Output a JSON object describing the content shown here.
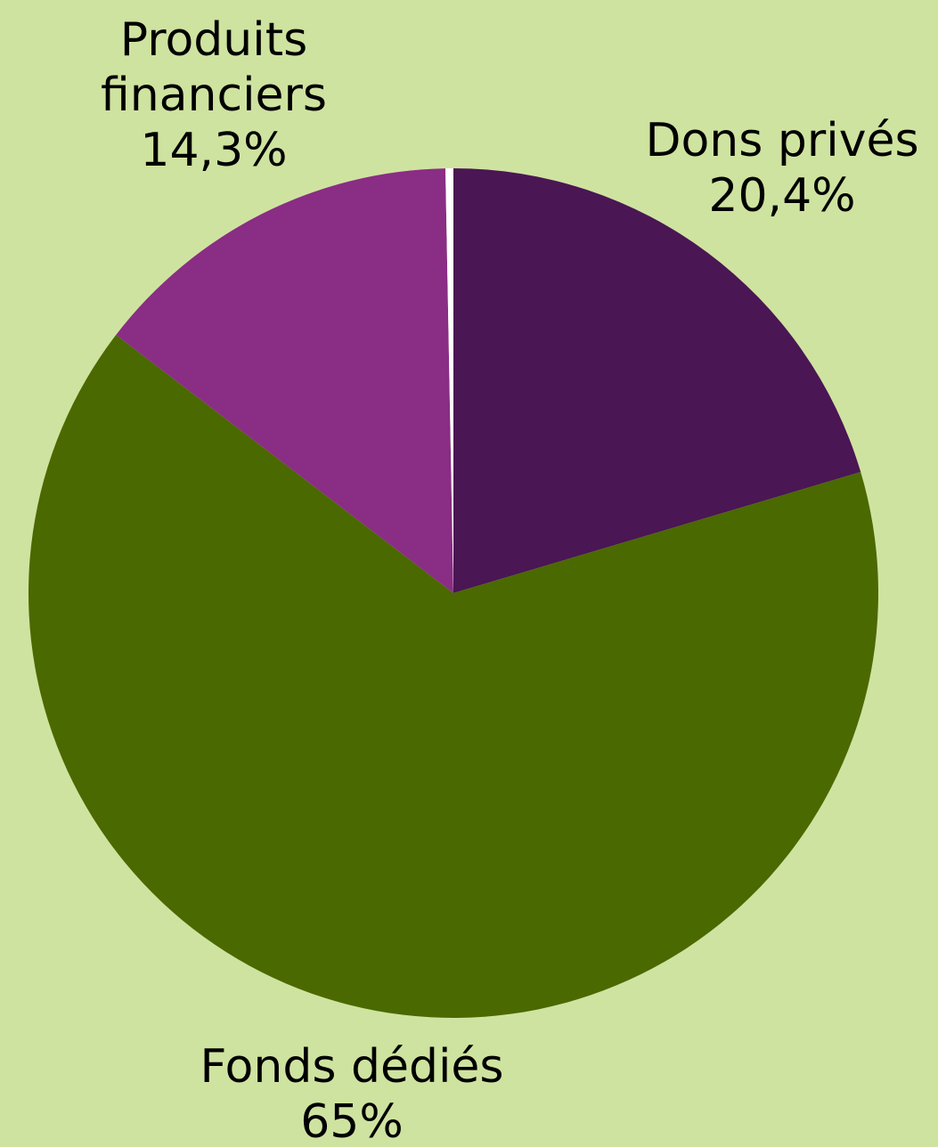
{
  "colors": {
    "background": "#cfe3a0"
  },
  "chart_data": {
    "type": "pie",
    "start_angle_deg": 0,
    "direction": "clockwise",
    "slices": [
      {
        "label": "Dons privés",
        "value": 20.4,
        "value_label": "20,4%",
        "color": "#4a1654",
        "label_lines": [
          "Dons privés"
        ]
      },
      {
        "label": "Fonds dédiés",
        "value": 65,
        "value_label": "65%",
        "color": "#4a6900",
        "label_lines": [
          "Fonds dédiés"
        ]
      },
      {
        "label": "Produits financiers",
        "value": 14.3,
        "value_label": "14,3%",
        "color": "#8a2d85",
        "label_lines": [
          "Produits",
          "financiers"
        ]
      },
      {
        "label": "",
        "value": 0.3,
        "value_label": "",
        "color": "#ffffff",
        "label_lines": []
      }
    ]
  }
}
